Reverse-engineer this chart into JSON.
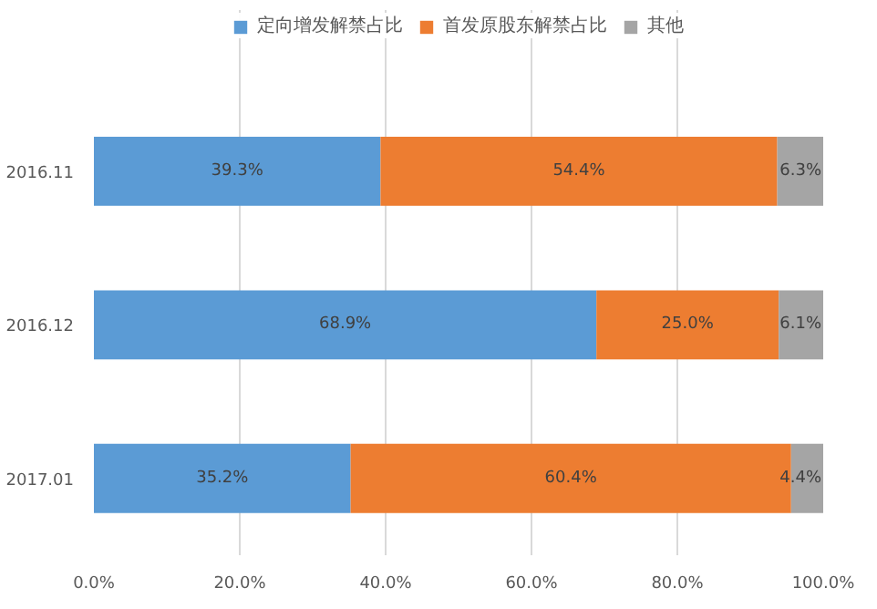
{
  "chart_data": {
    "type": "bar",
    "orientation": "horizontal",
    "stacked": true,
    "categories": [
      "2016.11",
      "2016.12",
      "2017.01"
    ],
    "series": [
      {
        "name": "定向增发解禁占比",
        "color": "#5b9bd5",
        "values": [
          39.3,
          68.9,
          35.2
        ],
        "value_labels": [
          "39.3%",
          "68.9%",
          "35.2%"
        ]
      },
      {
        "name": "首发原股东解禁占比",
        "color": "#ed7d31",
        "values": [
          54.4,
          25.0,
          60.4
        ],
        "value_labels": [
          "54.4%",
          "25.0%",
          "60.4%"
        ]
      },
      {
        "name": "其他",
        "color": "#a5a5a5",
        "values": [
          6.3,
          6.1,
          4.4
        ],
        "value_labels": [
          "6.3%",
          "6.1%",
          "4.4%"
        ]
      }
    ],
    "xlim": [
      0,
      100
    ],
    "xticks": [
      {
        "value": 0,
        "label": "0.0%"
      },
      {
        "value": 20,
        "label": "20.0%"
      },
      {
        "value": 40,
        "label": "40.0%"
      },
      {
        "value": 60,
        "label": "60.0%"
      },
      {
        "value": 80,
        "label": "80.0%"
      },
      {
        "value": 100,
        "label": "100.0%"
      }
    ],
    "grid": "x",
    "legend": "top"
  }
}
